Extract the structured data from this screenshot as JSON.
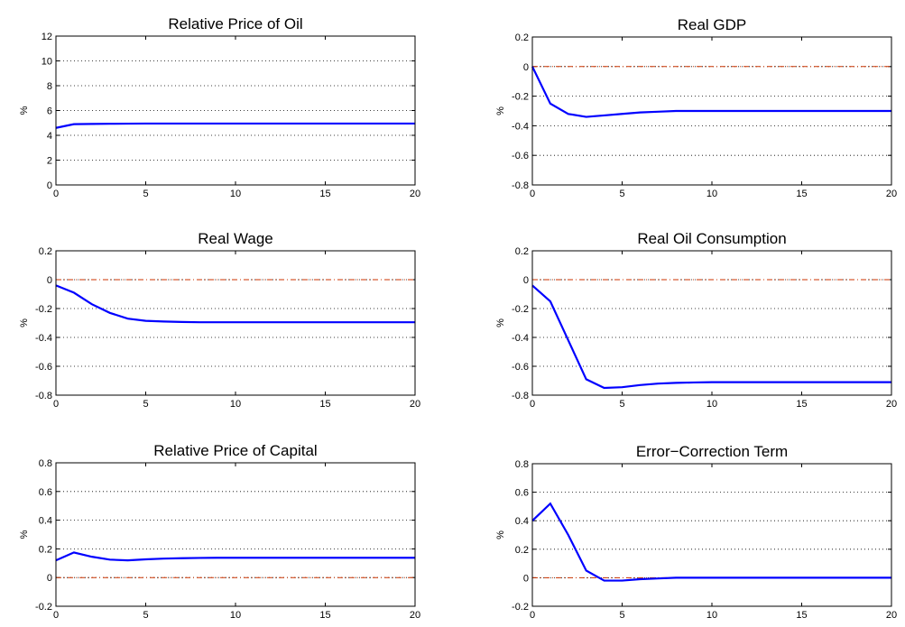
{
  "chart_data": [
    {
      "type": "line",
      "title": "Relative Price of Oil",
      "ylabel": "%",
      "x": [
        0,
        1,
        2,
        3,
        4,
        5,
        6,
        7,
        8,
        9,
        10,
        11,
        12,
        13,
        14,
        15,
        16,
        17,
        18,
        19,
        20
      ],
      "series": [
        {
          "color": "#0000ff",
          "values": [
            4.6,
            4.9,
            4.92,
            4.93,
            4.94,
            4.95,
            4.95,
            4.95,
            4.95,
            4.95,
            4.95,
            4.95,
            4.95,
            4.95,
            4.95,
            4.95,
            4.95,
            4.95,
            4.95,
            4.95,
            4.95
          ]
        }
      ],
      "xlim": [
        0,
        20
      ],
      "xticks": [
        0,
        5,
        10,
        15,
        20
      ],
      "ylim": [
        0,
        12
      ],
      "yticks": [
        0,
        2,
        4,
        6,
        8,
        10,
        12
      ],
      "grid": "y",
      "hline": 0,
      "hline_color": "#cc3300"
    },
    {
      "type": "line",
      "title": "Real GDP",
      "ylabel": "%",
      "x": [
        0,
        1,
        2,
        3,
        4,
        5,
        6,
        7,
        8,
        9,
        10,
        11,
        12,
        13,
        14,
        15,
        16,
        17,
        18,
        19,
        20
      ],
      "series": [
        {
          "color": "#0000ff",
          "values": [
            0,
            -0.25,
            -0.32,
            -0.34,
            -0.33,
            -0.32,
            -0.31,
            -0.305,
            -0.3,
            -0.3,
            -0.3,
            -0.3,
            -0.3,
            -0.3,
            -0.3,
            -0.3,
            -0.3,
            -0.3,
            -0.3,
            -0.3,
            -0.3
          ]
        }
      ],
      "xlim": [
        0,
        20
      ],
      "xticks": [
        0,
        5,
        10,
        15,
        20
      ],
      "ylim": [
        -0.8,
        0.2
      ],
      "yticks": [
        -0.8,
        -0.6,
        -0.4,
        -0.2,
        0,
        0.2
      ],
      "grid": "y",
      "hline": 0,
      "hline_color": "#cc3300"
    },
    {
      "type": "line",
      "title": "Real Wage",
      "ylabel": "%",
      "x": [
        0,
        1,
        2,
        3,
        4,
        5,
        6,
        7,
        8,
        9,
        10,
        11,
        12,
        13,
        14,
        15,
        16,
        17,
        18,
        19,
        20
      ],
      "series": [
        {
          "color": "#0000ff",
          "values": [
            -0.04,
            -0.09,
            -0.17,
            -0.23,
            -0.27,
            -0.285,
            -0.29,
            -0.293,
            -0.295,
            -0.295,
            -0.295,
            -0.295,
            -0.295,
            -0.295,
            -0.295,
            -0.295,
            -0.295,
            -0.295,
            -0.295,
            -0.295,
            -0.295
          ]
        }
      ],
      "xlim": [
        0,
        20
      ],
      "xticks": [
        0,
        5,
        10,
        15,
        20
      ],
      "ylim": [
        -0.8,
        0.2
      ],
      "yticks": [
        -0.8,
        -0.6,
        -0.4,
        -0.2,
        0,
        0.2
      ],
      "grid": "y",
      "hline": 0,
      "hline_color": "#cc3300"
    },
    {
      "type": "line",
      "title": "Real Oil Consumption",
      "ylabel": "%",
      "x": [
        0,
        1,
        2,
        3,
        4,
        5,
        6,
        7,
        8,
        9,
        10,
        11,
        12,
        13,
        14,
        15,
        16,
        17,
        18,
        19,
        20
      ],
      "series": [
        {
          "color": "#0000ff",
          "values": [
            -0.04,
            -0.15,
            -0.42,
            -0.69,
            -0.75,
            -0.745,
            -0.73,
            -0.72,
            -0.715,
            -0.712,
            -0.71,
            -0.71,
            -0.71,
            -0.71,
            -0.71,
            -0.71,
            -0.71,
            -0.71,
            -0.71,
            -0.71,
            -0.71
          ]
        }
      ],
      "xlim": [
        0,
        20
      ],
      "xticks": [
        0,
        5,
        10,
        15,
        20
      ],
      "ylim": [
        -0.8,
        0.2
      ],
      "yticks": [
        -0.8,
        -0.6,
        -0.4,
        -0.2,
        0,
        0.2
      ],
      "grid": "y",
      "hline": 0,
      "hline_color": "#cc3300"
    },
    {
      "type": "line",
      "title": "Relative Price of Capital",
      "ylabel": "%",
      "x": [
        0,
        1,
        2,
        3,
        4,
        5,
        6,
        7,
        8,
        9,
        10,
        11,
        12,
        13,
        14,
        15,
        16,
        17,
        18,
        19,
        20
      ],
      "series": [
        {
          "color": "#0000ff",
          "values": [
            0.12,
            0.175,
            0.145,
            0.125,
            0.12,
            0.127,
            0.132,
            0.135,
            0.137,
            0.138,
            0.138,
            0.138,
            0.138,
            0.138,
            0.138,
            0.138,
            0.138,
            0.138,
            0.138,
            0.138,
            0.138
          ]
        }
      ],
      "xlim": [
        0,
        20
      ],
      "xticks": [
        0,
        5,
        10,
        15,
        20
      ],
      "ylim": [
        -0.2,
        0.8
      ],
      "yticks": [
        -0.2,
        0,
        0.2,
        0.4,
        0.6,
        0.8
      ],
      "grid": "y",
      "hline": 0,
      "hline_color": "#cc3300"
    },
    {
      "type": "line",
      "title": "Error−Correction Term",
      "ylabel": "%",
      "x": [
        0,
        1,
        2,
        3,
        4,
        5,
        6,
        7,
        8,
        9,
        10,
        11,
        12,
        13,
        14,
        15,
        16,
        17,
        18,
        19,
        20
      ],
      "series": [
        {
          "color": "#0000ff",
          "values": [
            0.4,
            0.52,
            0.3,
            0.05,
            -0.02,
            -0.02,
            -0.01,
            -0.005,
            0,
            0,
            0,
            0,
            0,
            0,
            0,
            0,
            0,
            0,
            0,
            0,
            0
          ]
        }
      ],
      "xlim": [
        0,
        20
      ],
      "xticks": [
        0,
        5,
        10,
        15,
        20
      ],
      "ylim": [
        -0.2,
        0.8
      ],
      "yticks": [
        -0.2,
        0,
        0.2,
        0.4,
        0.6,
        0.8
      ],
      "grid": "y",
      "hline": 0,
      "hline_color": "#cc3300"
    }
  ]
}
